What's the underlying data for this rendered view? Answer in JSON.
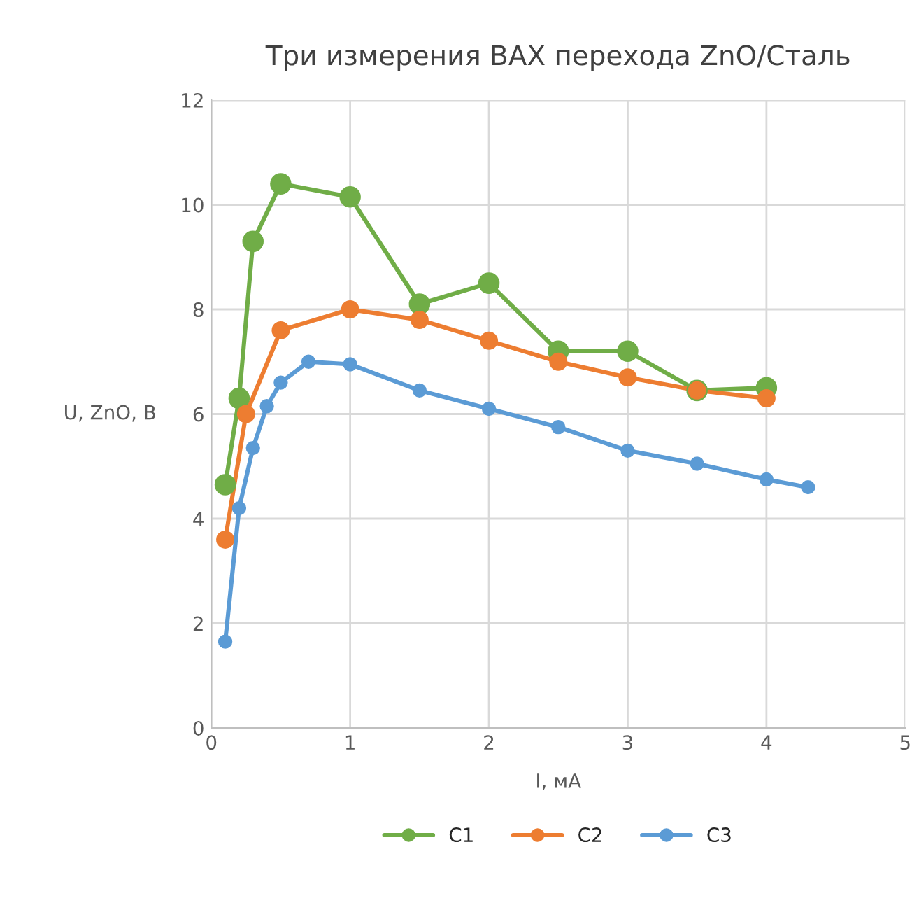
{
  "chart_data": {
    "type": "line",
    "title": "Три измерения ВАХ перехода ZnO/Сталь",
    "xlabel": "I, мА",
    "ylabel": "U, ZnO, В",
    "xlim": [
      0,
      5
    ],
    "xticks": [
      0,
      1,
      2,
      3,
      4,
      5
    ],
    "ylim": [
      0,
      12
    ],
    "yticks": [
      0,
      2,
      4,
      6,
      8,
      10,
      12
    ],
    "grid": true,
    "legend": "bottom",
    "marker": "circle",
    "line_style": "solid",
    "series": [
      {
        "name": "C1",
        "color": "#70ad47",
        "x": [
          0.1,
          0.2,
          0.3,
          0.5,
          1,
          1.5,
          2,
          2.5,
          3,
          3.5,
          4
        ],
        "values": [
          4.65,
          6.3,
          9.3,
          10.4,
          10.15,
          8.1,
          8.5,
          7.2,
          7.2,
          6.45,
          6.5
        ]
      },
      {
        "name": "C2",
        "color": "#ed7d31",
        "x": [
          0.1,
          0.25,
          0.5,
          1,
          1.5,
          2,
          2.5,
          3,
          3.5,
          4
        ],
        "values": [
          3.6,
          6.0,
          7.6,
          8.0,
          7.8,
          7.4,
          7.0,
          6.7,
          6.45,
          6.3
        ]
      },
      {
        "name": "C3",
        "color": "#5b9bd5",
        "x": [
          0.1,
          0.2,
          0.3,
          0.4,
          0.5,
          0.7,
          1,
          1.5,
          2,
          2.5,
          3,
          3.5,
          4,
          4.3
        ],
        "values": [
          1.65,
          4.2,
          5.35,
          6.15,
          6.6,
          7.0,
          6.95,
          6.45,
          6.1,
          5.75,
          5.3,
          5.05,
          4.75,
          4.6
        ]
      }
    ]
  }
}
